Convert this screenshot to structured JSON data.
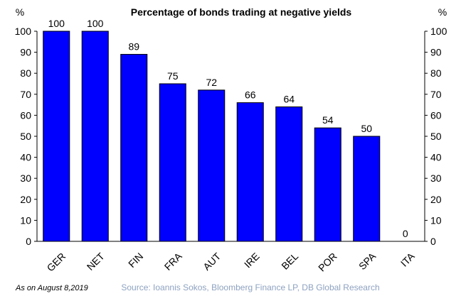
{
  "chart_data": {
    "type": "bar",
    "title": "Percentage of bonds trading at negative yields",
    "ylabel_left": "%",
    "ylabel_right": "%",
    "categories": [
      "GER",
      "NET",
      "FIN",
      "FRA",
      "AUT",
      "IRE",
      "BEL",
      "POR",
      "SPA",
      "ITA"
    ],
    "values": [
      100,
      100,
      89,
      75,
      72,
      66,
      64,
      54,
      50,
      0
    ],
    "ylim": [
      0,
      100
    ],
    "yticks": [
      0,
      10,
      20,
      30,
      40,
      50,
      60,
      70,
      80,
      90,
      100
    ],
    "grid": false,
    "legend": "none",
    "bar_color": "#0000ff",
    "note": "As on August 8,2019",
    "source": "Source: Ioannis Sokos, Bloomberg Finance LP,  DB Global Research"
  }
}
